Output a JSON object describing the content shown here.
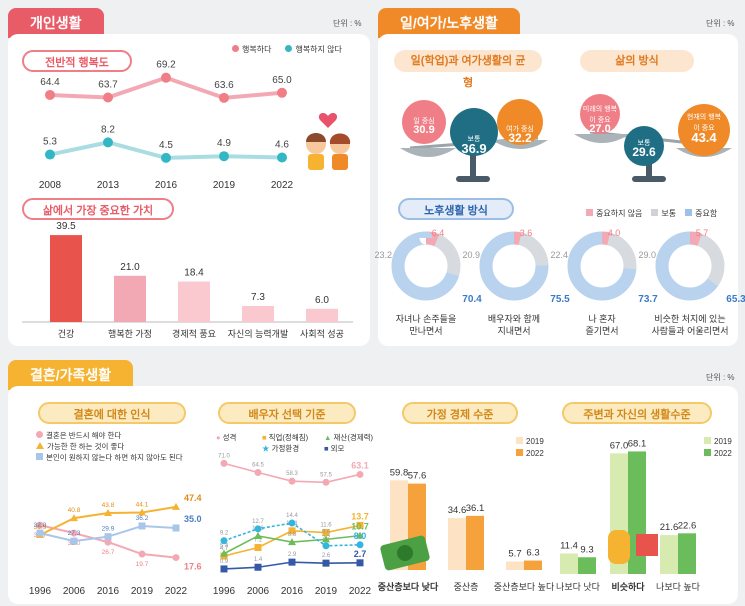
{
  "unit": "단위 : %",
  "colors": {
    "pink": "#f07e86",
    "teal": "#33b7c4",
    "orange": "#f08a29",
    "gold": "#f5b331",
    "blue": "#3559a6",
    "green": "#6bbd5b",
    "cyan": "#35b5de",
    "lightblue": "#c5daf0",
    "lightgreen": "#d7eab0",
    "red": "#e8534b"
  },
  "personal": {
    "tab": "개인생활",
    "happiness": {
      "pill": "전반적 행복도",
      "legend": [
        "행복하다",
        "행복하지 않다"
      ]
    },
    "values": {
      "pill": "삶에서 가장 중요한 가치"
    }
  },
  "worklife": {
    "tab": "일/여가/노후생활",
    "balance": {
      "pill": "일(학업)과 여가생활의 균형",
      "left_label": "일 중심",
      "left_value": "30.9",
      "center_label": "보통",
      "center_value": "36.9",
      "right_label": "여가 중심",
      "right_value": "32.2"
    },
    "life": {
      "pill": "삶의 방식",
      "left_label": "미래의 행복이 중요",
      "left_value": "27.0",
      "center_label": "보통",
      "center_value": "29.6",
      "right_label": "현재의 행복이 중요",
      "right_value": "43.4"
    },
    "retire": {
      "pill": "노후생활 방식",
      "legend": [
        "중요하지 않음",
        "보통",
        "중요함"
      ]
    }
  },
  "marriage": {
    "tab": "결혼/가족생활",
    "c1": {
      "pill": "결혼에 대한 인식",
      "legend": [
        "결혼은 반드시 해야 한다",
        "가능한 한 하는 것이 좋다",
        "본인이 원하지 않는다 하면 하지 않아도 된다"
      ]
    },
    "c2": {
      "pill": "배우자 선택 기준",
      "legend": [
        "성격",
        "직업(정해짐)",
        "재산(경제력)",
        "가정환경",
        "외모"
      ]
    },
    "c3": {
      "pill": "가정 경제 수준",
      "legend": [
        "2019",
        "2022"
      ]
    },
    "c4": {
      "pill": "주변과 자신의 생활수준",
      "legend": [
        "2019",
        "2022"
      ]
    }
  },
  "chart_data": [
    {
      "type": "line",
      "title": "전반적 행복도",
      "x": [
        "2008",
        "2013",
        "2016",
        "2019",
        "2022"
      ],
      "series": [
        {
          "name": "행복하다",
          "values": [
            64.4,
            63.7,
            69.2,
            63.6,
            65.0
          ]
        },
        {
          "name": "행복하지 않다",
          "values": [
            5.3,
            8.2,
            4.5,
            4.9,
            4.6
          ]
        }
      ]
    },
    {
      "type": "bar",
      "title": "삶에서 가장 중요한 가치",
      "categories": [
        "건강",
        "행복한 가정",
        "경제적 풍요",
        "자신의 능력개발",
        "사회적 성공"
      ],
      "values": [
        39.5,
        21.0,
        18.4,
        7.3,
        6.0
      ]
    },
    {
      "type": "pie",
      "title": "노후생활 방식",
      "categories": [
        "자녀나 손주들을 만나면서",
        "배우자와 함께 지내면서",
        "나 혼자 즐기면서",
        "비슷한 처지에 있는 사람들과 어울리면서"
      ],
      "series": [
        {
          "name": "중요하지 않음",
          "values": [
            6.4,
            3.6,
            4.0,
            5.7
          ]
        },
        {
          "name": "보통",
          "values": [
            23.2,
            20.9,
            22.4,
            29.0
          ]
        },
        {
          "name": "중요함",
          "values": [
            70.4,
            75.5,
            73.7,
            65.3
          ]
        }
      ]
    },
    {
      "type": "line",
      "title": "결혼에 대한 인식",
      "x": [
        "1996",
        "2006",
        "2016",
        "2019",
        "2022"
      ],
      "series": [
        {
          "name": "결혼은 반드시 해야 한다",
          "values": [
            36.7,
            32.0,
            26.7,
            19.7,
            17.6
          ]
        },
        {
          "name": "가능한 한 하는 것이 좋다",
          "values": [
            30.9,
            40.8,
            43.8,
            44.1,
            47.4
          ]
        },
        {
          "name": "본인이 원하지 않는다 하면 하지 않아도 된다",
          "values": [
            32.0,
            27.3,
            29.9,
            36.2,
            35.0
          ]
        }
      ]
    },
    {
      "type": "line",
      "title": "배우자 선택 기준",
      "x": [
        "1996",
        "2006",
        "2016",
        "2019",
        "2022"
      ],
      "series": [
        {
          "name": "성격",
          "values": [
            71.0,
            64.5,
            58.3,
            57.5,
            63.1
          ]
        },
        {
          "name": "직업(정해짐)",
          "values": [
            4.7,
            7.2,
            12.1,
            11.6,
            13.7
          ]
        },
        {
          "name": "재산(경제력)",
          "values": [
            5.4,
            10.6,
            8.8,
            9.6,
            10.7
          ]
        },
        {
          "name": "가정환경",
          "values": [
            9.2,
            12.7,
            14.4,
            7.7,
            8.0
          ]
        },
        {
          "name": "외모",
          "values": [
            0.9,
            1.4,
            2.9,
            2.6,
            2.7
          ]
        }
      ]
    },
    {
      "type": "bar",
      "title": "가정 경제 수준",
      "categories": [
        "중산층보다 낮다",
        "중산층",
        "중산층보다 높다"
      ],
      "series": [
        {
          "name": "2019",
          "values": [
            59.8,
            34.6,
            5.7
          ]
        },
        {
          "name": "2022",
          "values": [
            57.6,
            36.1,
            6.3
          ]
        }
      ]
    },
    {
      "type": "bar",
      "title": "주변과 자신의 생활수준",
      "categories": [
        "나보다 낫다",
        "비슷하다",
        "나보다 높다"
      ],
      "series": [
        {
          "name": "2019",
          "values": [
            11.4,
            67.0,
            21.6
          ]
        },
        {
          "name": "2022",
          "values": [
            9.3,
            68.1,
            22.6
          ]
        }
      ]
    }
  ]
}
